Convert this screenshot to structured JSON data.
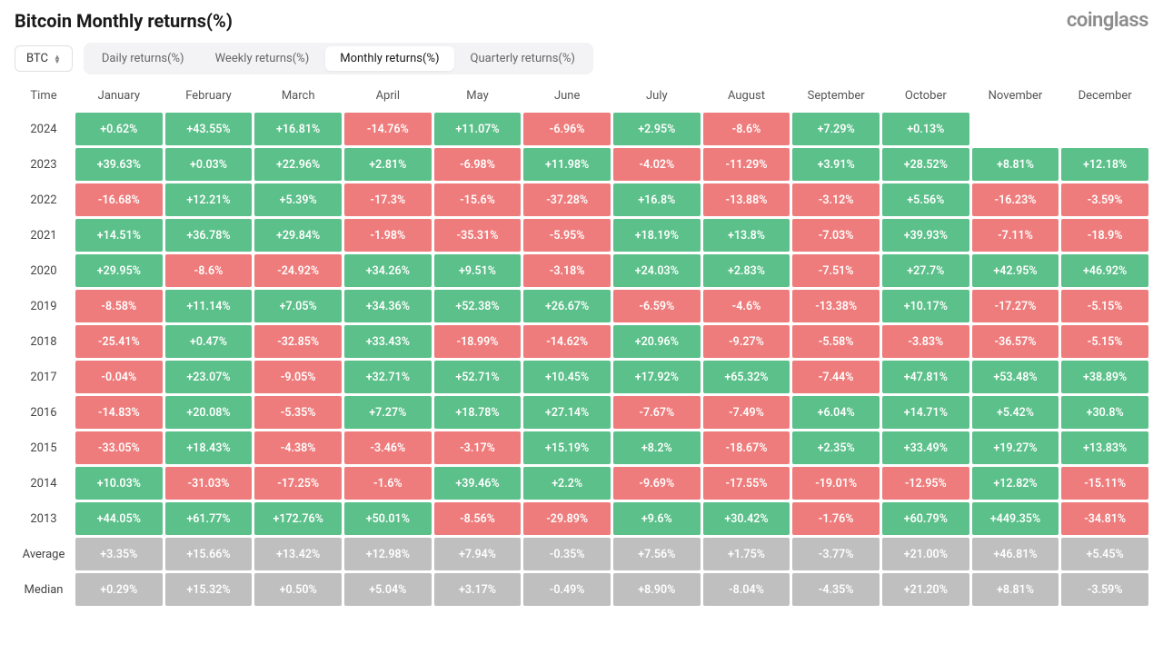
{
  "title": "Bitcoin Monthly returns(%)",
  "logo": "coinglass",
  "dropdown": {
    "value": "BTC"
  },
  "tabs": [
    {
      "label": "Daily returns(%)",
      "active": false
    },
    {
      "label": "Weekly returns(%)",
      "active": false
    },
    {
      "label": "Monthly returns(%)",
      "active": true
    },
    {
      "label": "Quarterly returns(%)",
      "active": false
    }
  ],
  "columns": [
    "Time",
    "January",
    "February",
    "March",
    "April",
    "May",
    "June",
    "July",
    "August",
    "September",
    "October",
    "November",
    "December"
  ],
  "colors": {
    "positive": "#5bc08a",
    "negative": "#ef7c7c",
    "summary": "#bfbfbf",
    "text_on_cell": "#ffffff",
    "header_text": "#555555",
    "row_label_text": "#444444",
    "background": "#ffffff",
    "tab_bg": "#f3f3f5",
    "tab_active_bg": "#ffffff",
    "logo_text": "#8c8c8c"
  },
  "rows": [
    {
      "label": "2024",
      "type": "data",
      "cells": [
        {
          "text": "+0.62%",
          "sign": "pos"
        },
        {
          "text": "+43.55%",
          "sign": "pos"
        },
        {
          "text": "+16.81%",
          "sign": "pos"
        },
        {
          "text": "-14.76%",
          "sign": "neg"
        },
        {
          "text": "+11.07%",
          "sign": "pos"
        },
        {
          "text": "-6.96%",
          "sign": "neg"
        },
        {
          "text": "+2.95%",
          "sign": "pos"
        },
        {
          "text": "-8.6%",
          "sign": "neg"
        },
        {
          "text": "+7.29%",
          "sign": "pos"
        },
        {
          "text": "+0.13%",
          "sign": "pos"
        },
        null,
        null
      ]
    },
    {
      "label": "2023",
      "type": "data",
      "cells": [
        {
          "text": "+39.63%",
          "sign": "pos"
        },
        {
          "text": "+0.03%",
          "sign": "pos"
        },
        {
          "text": "+22.96%",
          "sign": "pos"
        },
        {
          "text": "+2.81%",
          "sign": "pos"
        },
        {
          "text": "-6.98%",
          "sign": "neg"
        },
        {
          "text": "+11.98%",
          "sign": "pos"
        },
        {
          "text": "-4.02%",
          "sign": "neg"
        },
        {
          "text": "-11.29%",
          "sign": "neg"
        },
        {
          "text": "+3.91%",
          "sign": "pos"
        },
        {
          "text": "+28.52%",
          "sign": "pos"
        },
        {
          "text": "+8.81%",
          "sign": "pos"
        },
        {
          "text": "+12.18%",
          "sign": "pos"
        }
      ]
    },
    {
      "label": "2022",
      "type": "data",
      "cells": [
        {
          "text": "-16.68%",
          "sign": "neg"
        },
        {
          "text": "+12.21%",
          "sign": "pos"
        },
        {
          "text": "+5.39%",
          "sign": "pos"
        },
        {
          "text": "-17.3%",
          "sign": "neg"
        },
        {
          "text": "-15.6%",
          "sign": "neg"
        },
        {
          "text": "-37.28%",
          "sign": "neg"
        },
        {
          "text": "+16.8%",
          "sign": "pos"
        },
        {
          "text": "-13.88%",
          "sign": "neg"
        },
        {
          "text": "-3.12%",
          "sign": "neg"
        },
        {
          "text": "+5.56%",
          "sign": "pos"
        },
        {
          "text": "-16.23%",
          "sign": "neg"
        },
        {
          "text": "-3.59%",
          "sign": "neg"
        }
      ]
    },
    {
      "label": "2021",
      "type": "data",
      "cells": [
        {
          "text": "+14.51%",
          "sign": "pos"
        },
        {
          "text": "+36.78%",
          "sign": "pos"
        },
        {
          "text": "+29.84%",
          "sign": "pos"
        },
        {
          "text": "-1.98%",
          "sign": "neg"
        },
        {
          "text": "-35.31%",
          "sign": "neg"
        },
        {
          "text": "-5.95%",
          "sign": "neg"
        },
        {
          "text": "+18.19%",
          "sign": "pos"
        },
        {
          "text": "+13.8%",
          "sign": "pos"
        },
        {
          "text": "-7.03%",
          "sign": "neg"
        },
        {
          "text": "+39.93%",
          "sign": "pos"
        },
        {
          "text": "-7.11%",
          "sign": "neg"
        },
        {
          "text": "-18.9%",
          "sign": "neg"
        }
      ]
    },
    {
      "label": "2020",
      "type": "data",
      "cells": [
        {
          "text": "+29.95%",
          "sign": "pos"
        },
        {
          "text": "-8.6%",
          "sign": "neg"
        },
        {
          "text": "-24.92%",
          "sign": "neg"
        },
        {
          "text": "+34.26%",
          "sign": "pos"
        },
        {
          "text": "+9.51%",
          "sign": "pos"
        },
        {
          "text": "-3.18%",
          "sign": "neg"
        },
        {
          "text": "+24.03%",
          "sign": "pos"
        },
        {
          "text": "+2.83%",
          "sign": "pos"
        },
        {
          "text": "-7.51%",
          "sign": "neg"
        },
        {
          "text": "+27.7%",
          "sign": "pos"
        },
        {
          "text": "+42.95%",
          "sign": "pos"
        },
        {
          "text": "+46.92%",
          "sign": "pos"
        }
      ]
    },
    {
      "label": "2019",
      "type": "data",
      "cells": [
        {
          "text": "-8.58%",
          "sign": "neg"
        },
        {
          "text": "+11.14%",
          "sign": "pos"
        },
        {
          "text": "+7.05%",
          "sign": "pos"
        },
        {
          "text": "+34.36%",
          "sign": "pos"
        },
        {
          "text": "+52.38%",
          "sign": "pos"
        },
        {
          "text": "+26.67%",
          "sign": "pos"
        },
        {
          "text": "-6.59%",
          "sign": "neg"
        },
        {
          "text": "-4.6%",
          "sign": "neg"
        },
        {
          "text": "-13.38%",
          "sign": "neg"
        },
        {
          "text": "+10.17%",
          "sign": "pos"
        },
        {
          "text": "-17.27%",
          "sign": "neg"
        },
        {
          "text": "-5.15%",
          "sign": "neg"
        }
      ]
    },
    {
      "label": "2018",
      "type": "data",
      "cells": [
        {
          "text": "-25.41%",
          "sign": "neg"
        },
        {
          "text": "+0.47%",
          "sign": "pos"
        },
        {
          "text": "-32.85%",
          "sign": "neg"
        },
        {
          "text": "+33.43%",
          "sign": "pos"
        },
        {
          "text": "-18.99%",
          "sign": "neg"
        },
        {
          "text": "-14.62%",
          "sign": "neg"
        },
        {
          "text": "+20.96%",
          "sign": "pos"
        },
        {
          "text": "-9.27%",
          "sign": "neg"
        },
        {
          "text": "-5.58%",
          "sign": "neg"
        },
        {
          "text": "-3.83%",
          "sign": "neg"
        },
        {
          "text": "-36.57%",
          "sign": "neg"
        },
        {
          "text": "-5.15%",
          "sign": "neg"
        }
      ]
    },
    {
      "label": "2017",
      "type": "data",
      "cells": [
        {
          "text": "-0.04%",
          "sign": "neg"
        },
        {
          "text": "+23.07%",
          "sign": "pos"
        },
        {
          "text": "-9.05%",
          "sign": "neg"
        },
        {
          "text": "+32.71%",
          "sign": "pos"
        },
        {
          "text": "+52.71%",
          "sign": "pos"
        },
        {
          "text": "+10.45%",
          "sign": "pos"
        },
        {
          "text": "+17.92%",
          "sign": "pos"
        },
        {
          "text": "+65.32%",
          "sign": "pos"
        },
        {
          "text": "-7.44%",
          "sign": "neg"
        },
        {
          "text": "+47.81%",
          "sign": "pos"
        },
        {
          "text": "+53.48%",
          "sign": "pos"
        },
        {
          "text": "+38.89%",
          "sign": "pos"
        }
      ]
    },
    {
      "label": "2016",
      "type": "data",
      "cells": [
        {
          "text": "-14.83%",
          "sign": "neg"
        },
        {
          "text": "+20.08%",
          "sign": "pos"
        },
        {
          "text": "-5.35%",
          "sign": "neg"
        },
        {
          "text": "+7.27%",
          "sign": "pos"
        },
        {
          "text": "+18.78%",
          "sign": "pos"
        },
        {
          "text": "+27.14%",
          "sign": "pos"
        },
        {
          "text": "-7.67%",
          "sign": "neg"
        },
        {
          "text": "-7.49%",
          "sign": "neg"
        },
        {
          "text": "+6.04%",
          "sign": "pos"
        },
        {
          "text": "+14.71%",
          "sign": "pos"
        },
        {
          "text": "+5.42%",
          "sign": "pos"
        },
        {
          "text": "+30.8%",
          "sign": "pos"
        }
      ]
    },
    {
      "label": "2015",
      "type": "data",
      "cells": [
        {
          "text": "-33.05%",
          "sign": "neg"
        },
        {
          "text": "+18.43%",
          "sign": "pos"
        },
        {
          "text": "-4.38%",
          "sign": "neg"
        },
        {
          "text": "-3.46%",
          "sign": "neg"
        },
        {
          "text": "-3.17%",
          "sign": "neg"
        },
        {
          "text": "+15.19%",
          "sign": "pos"
        },
        {
          "text": "+8.2%",
          "sign": "pos"
        },
        {
          "text": "-18.67%",
          "sign": "neg"
        },
        {
          "text": "+2.35%",
          "sign": "pos"
        },
        {
          "text": "+33.49%",
          "sign": "pos"
        },
        {
          "text": "+19.27%",
          "sign": "pos"
        },
        {
          "text": "+13.83%",
          "sign": "pos"
        }
      ]
    },
    {
      "label": "2014",
      "type": "data",
      "cells": [
        {
          "text": "+10.03%",
          "sign": "pos"
        },
        {
          "text": "-31.03%",
          "sign": "neg"
        },
        {
          "text": "-17.25%",
          "sign": "neg"
        },
        {
          "text": "-1.6%",
          "sign": "neg"
        },
        {
          "text": "+39.46%",
          "sign": "pos"
        },
        {
          "text": "+2.2%",
          "sign": "pos"
        },
        {
          "text": "-9.69%",
          "sign": "neg"
        },
        {
          "text": "-17.55%",
          "sign": "neg"
        },
        {
          "text": "-19.01%",
          "sign": "neg"
        },
        {
          "text": "-12.95%",
          "sign": "neg"
        },
        {
          "text": "+12.82%",
          "sign": "pos"
        },
        {
          "text": "-15.11%",
          "sign": "neg"
        }
      ]
    },
    {
      "label": "2013",
      "type": "data",
      "cells": [
        {
          "text": "+44.05%",
          "sign": "pos"
        },
        {
          "text": "+61.77%",
          "sign": "pos"
        },
        {
          "text": "+172.76%",
          "sign": "pos"
        },
        {
          "text": "+50.01%",
          "sign": "pos"
        },
        {
          "text": "-8.56%",
          "sign": "neg"
        },
        {
          "text": "-29.89%",
          "sign": "neg"
        },
        {
          "text": "+9.6%",
          "sign": "pos"
        },
        {
          "text": "+30.42%",
          "sign": "pos"
        },
        {
          "text": "-1.76%",
          "sign": "neg"
        },
        {
          "text": "+60.79%",
          "sign": "pos"
        },
        {
          "text": "+449.35%",
          "sign": "pos"
        },
        {
          "text": "-34.81%",
          "sign": "neg"
        }
      ]
    },
    {
      "label": "Average",
      "type": "summary",
      "cells": [
        {
          "text": "+3.35%"
        },
        {
          "text": "+15.66%"
        },
        {
          "text": "+13.42%"
        },
        {
          "text": "+12.98%"
        },
        {
          "text": "+7.94%"
        },
        {
          "text": "-0.35%"
        },
        {
          "text": "+7.56%"
        },
        {
          "text": "+1.75%"
        },
        {
          "text": "-3.77%"
        },
        {
          "text": "+21.00%"
        },
        {
          "text": "+46.81%"
        },
        {
          "text": "+5.45%"
        }
      ]
    },
    {
      "label": "Median",
      "type": "summary",
      "cells": [
        {
          "text": "+0.29%"
        },
        {
          "text": "+15.32%"
        },
        {
          "text": "+0.50%"
        },
        {
          "text": "+5.04%"
        },
        {
          "text": "+3.17%"
        },
        {
          "text": "-0.49%"
        },
        {
          "text": "+8.90%"
        },
        {
          "text": "-8.04%"
        },
        {
          "text": "-4.35%"
        },
        {
          "text": "+21.20%"
        },
        {
          "text": "+8.81%"
        },
        {
          "text": "-3.59%"
        }
      ]
    }
  ]
}
